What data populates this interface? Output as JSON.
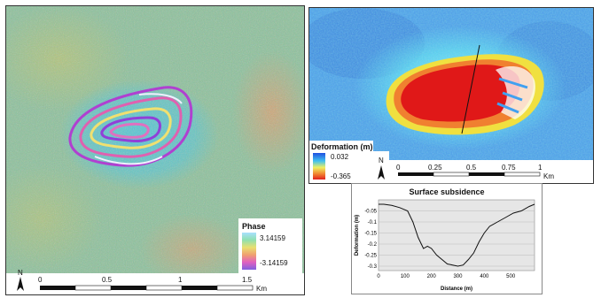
{
  "left_map": {
    "legend": {
      "title": "Phase",
      "max_label": "3.14159",
      "min_label": "-3.14159"
    },
    "scale_bar": {
      "ticks": [
        "0",
        "0.5",
        "1",
        "1.5"
      ],
      "unit": "Km"
    },
    "north_label": "N"
  },
  "right_map": {
    "legend": {
      "title": "Deformation (m)",
      "max_label": "0.032",
      "min_label": "-0.365"
    },
    "scale_bar": {
      "ticks": [
        "0",
        "0.25",
        "0.5",
        "0.75",
        "1"
      ],
      "unit": "Km"
    },
    "north_label": "N"
  },
  "chart_data": {
    "type": "line",
    "title": "Surface subsidence",
    "xlabel": "Distance (m)",
    "ylabel": "Deformation (m)",
    "x_ticks": [
      "0",
      "100",
      "200",
      "300",
      "400",
      "500"
    ],
    "y_ticks": [
      "-0.05",
      "-0.1",
      "-0.15",
      "-0.2",
      "-0.25",
      "-0.3"
    ],
    "xlim": [
      0,
      590
    ],
    "ylim": [
      -0.32,
      0.0
    ],
    "grid": true,
    "series": [
      {
        "x": [
          0,
          20,
          50,
          80,
          110,
          130,
          150,
          170,
          185,
          200,
          220,
          240,
          260,
          280,
          300,
          320,
          340,
          360,
          380,
          400,
          420,
          450,
          480,
          510,
          540,
          570,
          590
        ],
        "y": [
          -0.02,
          -0.02,
          -0.025,
          -0.035,
          -0.05,
          -0.1,
          -0.17,
          -0.22,
          -0.21,
          -0.22,
          -0.25,
          -0.27,
          -0.29,
          -0.295,
          -0.3,
          -0.295,
          -0.27,
          -0.24,
          -0.19,
          -0.15,
          -0.12,
          -0.1,
          -0.08,
          -0.06,
          -0.05,
          -0.03,
          -0.02
        ]
      }
    ]
  }
}
